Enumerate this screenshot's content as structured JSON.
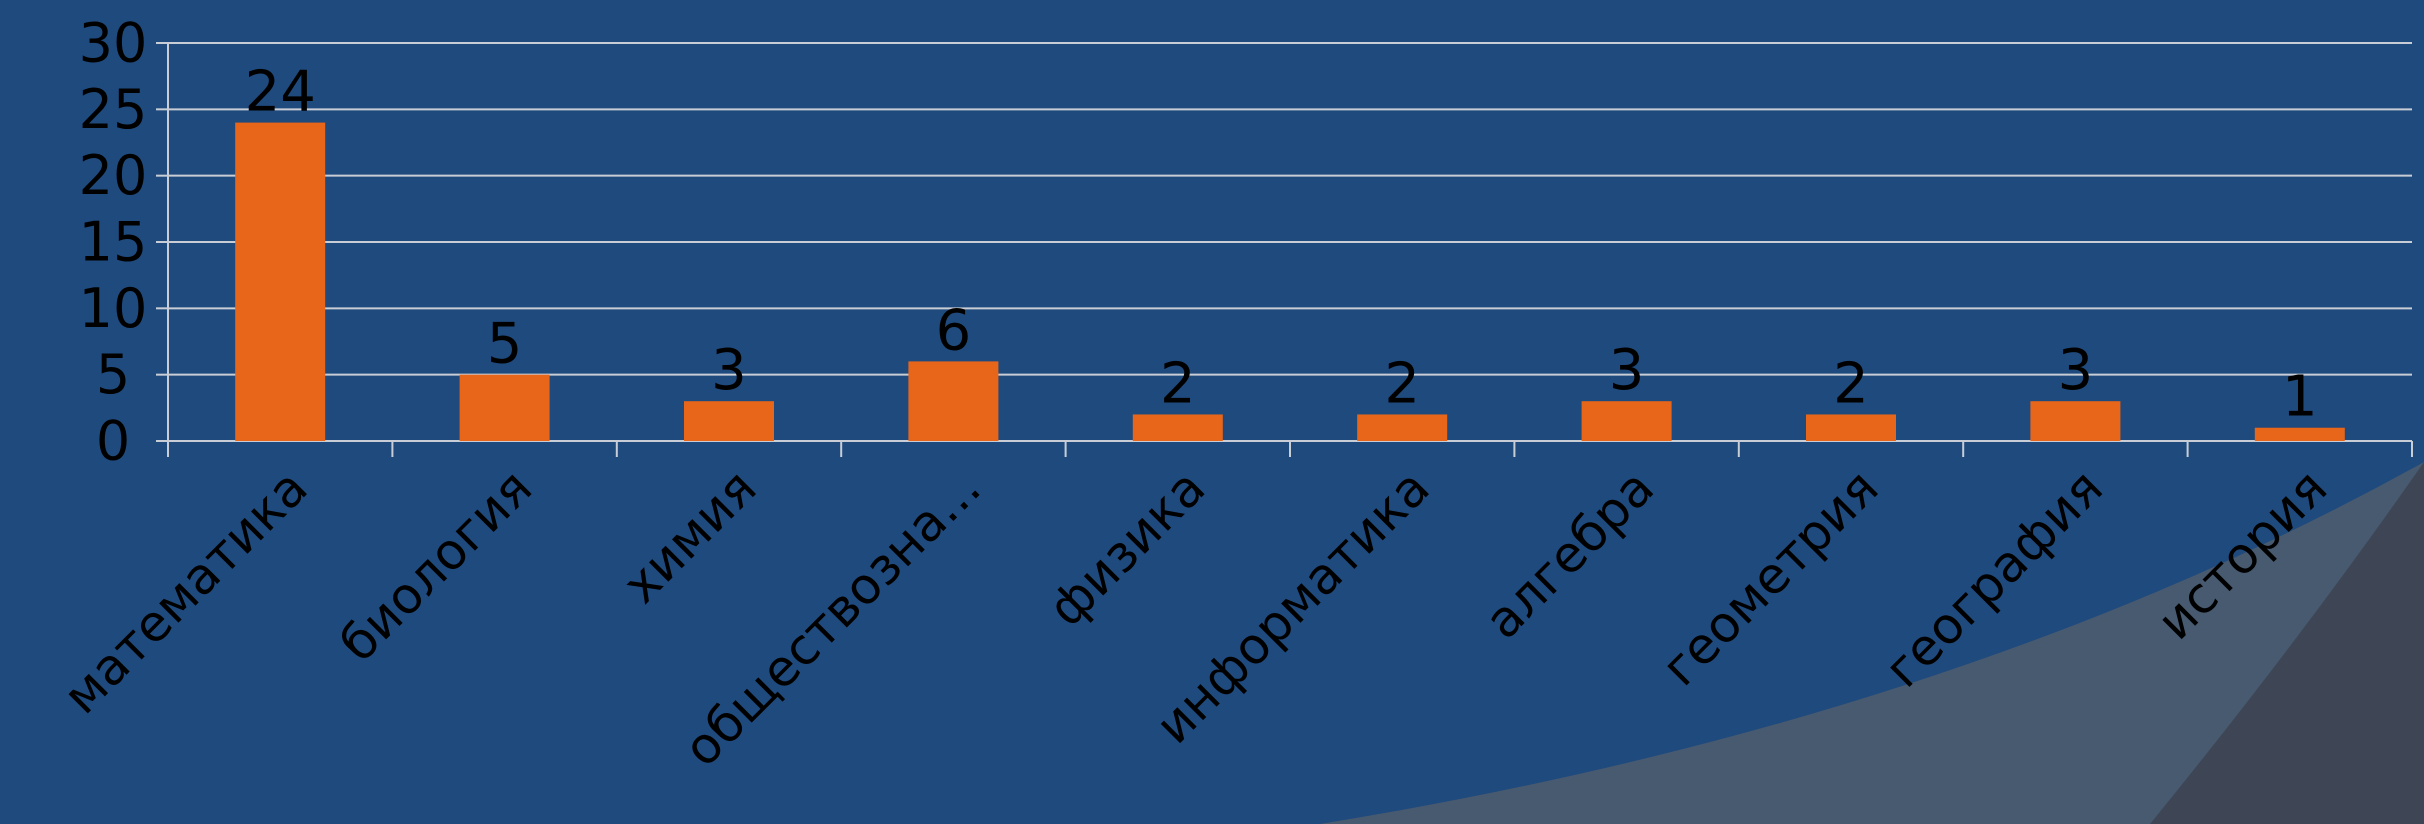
{
  "theme": {
    "background": "#1f4a7d",
    "bar_color": "#e8661a",
    "grid_color": "#c9ced6",
    "text_color": "#000000",
    "corner_overlay_light": "#4a5b70",
    "corner_overlay_dark": "#3e4653"
  },
  "chart_data": {
    "type": "bar",
    "categories": [
      "математика",
      "биология",
      "химия",
      "обществозна...",
      "физика",
      "информатика",
      "алгебра",
      "геометрия",
      "география",
      "история"
    ],
    "values": [
      24,
      5,
      3,
      6,
      2,
      2,
      3,
      2,
      3,
      1
    ],
    "data_labels": [
      "24",
      "5",
      "3",
      "6",
      "2",
      "2",
      "3",
      "2",
      "3",
      "1"
    ],
    "y_ticks": [
      "0",
      "5",
      "10",
      "15",
      "20",
      "25",
      "30"
    ],
    "ylim": [
      0,
      30
    ],
    "grid": true,
    "legend": "none"
  }
}
